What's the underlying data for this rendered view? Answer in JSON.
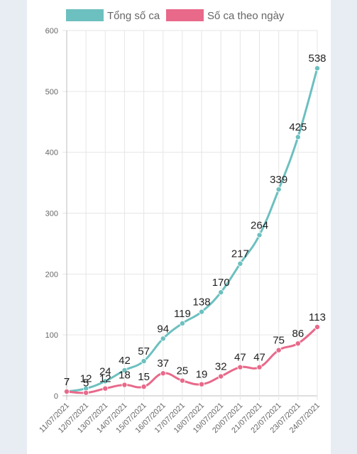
{
  "chart_data": {
    "type": "line",
    "categories": [
      "11/07/2021",
      "12/07/2021",
      "13/07/2021",
      "14/07/2021",
      "15/07/2021",
      "16/07/2021",
      "17/07/2021",
      "18/07/2021",
      "19/07/2021",
      "20/07/2021",
      "21/07/2021",
      "22/07/2021",
      "23/07/2021",
      "24/07/2021"
    ],
    "series": [
      {
        "name": "Tổng số ca",
        "color": "#6cc0bf",
        "values": [
          7,
          12,
          24,
          42,
          57,
          94,
          119,
          138,
          170,
          217,
          264,
          339,
          425,
          538
        ]
      },
      {
        "name": "Số ca theo ngày",
        "color": "#e8698a",
        "values": [
          7,
          5,
          12,
          18,
          15,
          37,
          25,
          19,
          32,
          47,
          47,
          75,
          86,
          113
        ]
      }
    ],
    "yticks": [
      0,
      100,
      200,
      300,
      400,
      500,
      600
    ],
    "ylim": [
      0,
      600
    ],
    "grid": true,
    "legend_position": "top",
    "data_labels": true
  }
}
